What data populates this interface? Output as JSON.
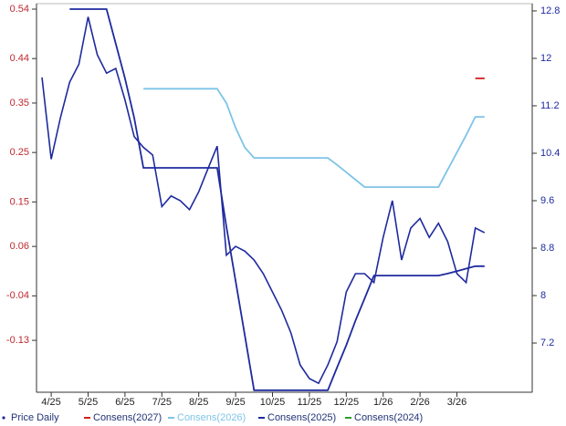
{
  "chart_data": {
    "type": "line",
    "categories": [
      null,
      "4/25",
      null,
      null,
      null,
      "5/25",
      null,
      null,
      null,
      "6/25",
      null,
      null,
      null,
      "7/25",
      null,
      null,
      null,
      "8/25",
      null,
      null,
      null,
      "9/25",
      null,
      null,
      null,
      "10/25",
      null,
      null,
      null,
      "11/25",
      null,
      null,
      null,
      "12/25",
      null,
      null,
      null,
      "1/26",
      null,
      null,
      null,
      "2/26",
      null,
      null,
      null,
      "3/26",
      null,
      null,
      null
    ],
    "series": [
      {
        "name": "Price Daily",
        "color": "#1f2a9e",
        "axis": "y2",
        "values": [
          11.68,
          10.3,
          11.0,
          11.6,
          11.9,
          12.7,
          12.06,
          11.75,
          11.83,
          11.3,
          10.68,
          10.5,
          10.37,
          9.5,
          9.68,
          9.6,
          9.45,
          9.75,
          10.14,
          10.52,
          8.68,
          8.83,
          8.75,
          8.6,
          8.37,
          8.06,
          7.75,
          7.37,
          6.83,
          6.6,
          6.52,
          6.83,
          7.22,
          8.06,
          8.37,
          8.37,
          8.22,
          8.98,
          9.6,
          8.6,
          9.14,
          9.3,
          8.98,
          9.22,
          8.91,
          8.37,
          8.22,
          9.14,
          9.06
        ]
      },
      {
        "name": "Consens(2027)",
        "color": "#d42020",
        "values": [
          null,
          null,
          null,
          null,
          null,
          null,
          null,
          null,
          null,
          null,
          null,
          null,
          null,
          null,
          null,
          null,
          null,
          null,
          null,
          null,
          null,
          null,
          null,
          null,
          null,
          null,
          null,
          null,
          null,
          null,
          null,
          null,
          null,
          null,
          null,
          null,
          null,
          null,
          null,
          null,
          null,
          null,
          null,
          null,
          null,
          null,
          null,
          0.4,
          0.4
        ]
      },
      {
        "name": "Consens(2026)",
        "color": "#7ec4e6",
        "values": [
          null,
          null,
          null,
          null,
          null,
          null,
          null,
          null,
          null,
          null,
          null,
          0.379,
          0.379,
          0.379,
          0.379,
          0.379,
          0.379,
          0.379,
          0.379,
          0.379,
          0.35,
          0.3,
          0.26,
          0.239,
          0.239,
          0.239,
          0.239,
          0.239,
          0.239,
          0.239,
          0.239,
          0.239,
          0.225,
          0.21,
          0.195,
          0.18,
          0.18,
          0.18,
          0.18,
          0.18,
          0.18,
          0.18,
          0.18,
          0.18,
          0.215,
          0.25,
          0.285,
          0.322,
          0.322
        ]
      },
      {
        "name": "Consens(2025)",
        "color": "#1f2a9e",
        "values": [
          null,
          null,
          null,
          0.54,
          0.54,
          0.54,
          0.54,
          0.54,
          0.47,
          0.4,
          0.32,
          0.219,
          0.219,
          0.219,
          0.219,
          0.219,
          0.219,
          0.219,
          0.219,
          0.219,
          0.1,
          -0.01,
          -0.12,
          -0.231,
          -0.231,
          -0.231,
          -0.231,
          -0.231,
          -0.231,
          -0.231,
          -0.231,
          -0.231,
          -0.185,
          -0.14,
          -0.09,
          -0.045,
          0.001,
          0.001,
          0.001,
          0.001,
          0.001,
          0.001,
          0.001,
          0.001,
          0.005,
          0.01,
          0.015,
          0.02,
          0.02
        ]
      },
      {
        "name": "Consens(2024)",
        "color": "#2ca02c",
        "values": [
          null,
          null,
          null,
          null,
          null,
          null,
          null,
          null,
          null,
          null,
          null,
          null,
          null,
          null,
          null,
          null,
          null,
          null,
          null,
          null,
          null,
          null,
          null,
          null,
          null,
          null,
          null,
          null,
          null,
          null,
          null,
          null,
          null,
          null,
          null,
          null,
          null,
          null,
          null,
          null,
          null,
          null,
          null,
          null,
          null,
          null,
          null,
          null,
          null
        ]
      }
    ],
    "ylim": [
      -0.235,
      0.54
    ],
    "yticks": [
      0.54,
      0.44,
      0.35,
      0.25,
      0.15,
      0.06,
      -0.04,
      -0.13
    ],
    "y2lim": [
      6.37,
      12.83
    ],
    "y2ticks": [
      12.8,
      12.0,
      11.2,
      10.4,
      9.6,
      8.8,
      8.0,
      7.2
    ]
  }
}
